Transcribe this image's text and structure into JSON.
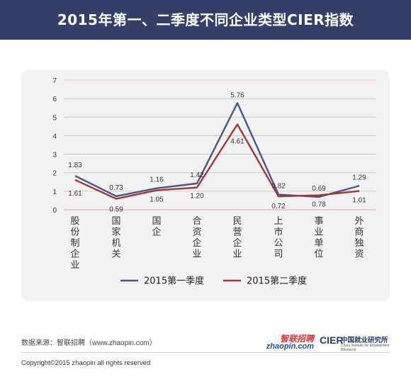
{
  "header": {
    "title": "2015年第一、二季度不同企业类型CIER指数"
  },
  "chart_data": {
    "type": "line",
    "categories": [
      "股份制企业",
      "国家机关",
      "国企",
      "合资企业",
      "民营企业",
      "上市公司",
      "事业单位",
      "外商独资"
    ],
    "series": [
      {
        "name": "2015第一季度",
        "values": [
          1.83,
          0.73,
          1.16,
          1.42,
          5.76,
          0.82,
          0.69,
          1.29
        ],
        "color": "#4a5688"
      },
      {
        "name": "2015第二季度",
        "values": [
          1.61,
          0.59,
          1.05,
          1.2,
          4.61,
          0.72,
          0.78,
          1.01
        ],
        "color": "#a3363a"
      }
    ],
    "value_labels": {
      "2015第一季度": [
        "1.83",
        "0.73",
        "1.16",
        "1.42",
        "5.76",
        "0.82",
        "0.69",
        "1.29"
      ],
      "2015第二季度": [
        "1.61",
        "0.59",
        "1.05",
        "1.20",
        "4.61",
        "0.72",
        "0.78",
        "1.01"
      ]
    },
    "ylim": [
      0,
      7
    ],
    "yticks": [
      "0",
      "1",
      "2",
      "3",
      "4",
      "5",
      "6",
      "7"
    ],
    "grid": true,
    "legend_position": "bottom"
  },
  "footer": {
    "source": "数据来源：智联招聘（www.zhaopin.com）",
    "copyright": "Copyright©2015 zhaopin all rights reserved",
    "logo_zhaopin_cn": "智联招聘",
    "logo_zhaopin_en": "zhaopin.com",
    "logo_cier_mark": "CIER",
    "logo_cier_cn": "中国就业研究所",
    "logo_cier_en": "China Institute for Employment Research"
  }
}
